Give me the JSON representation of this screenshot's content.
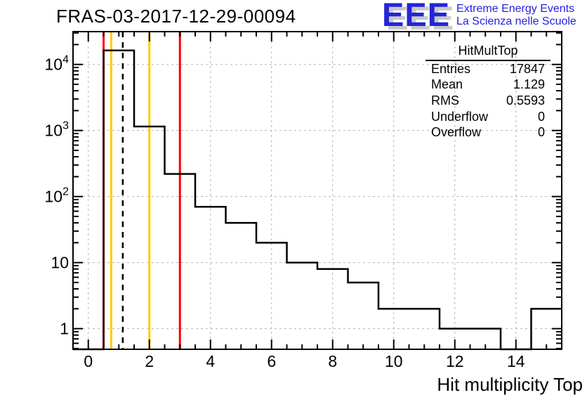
{
  "header": {
    "title": "FRAS-03-2017-12-29-00094"
  },
  "logo": {
    "eee": "EEE",
    "line1": "Extreme Energy Events",
    "line2": "La Scienza nelle Scuole",
    "color": "#2424d8",
    "shadow_color": "#c9c9c9"
  },
  "stats": {
    "title": "HitMultTop",
    "rows": [
      {
        "label": "Entries",
        "value": "17847"
      },
      {
        "label": "Mean",
        "value": "1.129"
      },
      {
        "label": "RMS",
        "value": "0.5593"
      },
      {
        "label": "Underflow",
        "value": "0"
      },
      {
        "label": "Overflow",
        "value": "0"
      }
    ]
  },
  "chart_data": {
    "type": "bar",
    "subtype": "step-histogram-outline",
    "title": "FRAS-03-2017-12-29-00094",
    "xlabel": "Hit multiplicity Top",
    "ylabel": "",
    "x_range": [
      -0.5,
      15.5
    ],
    "y_scale": "log",
    "y_range": [
      0.487,
      31400
    ],
    "bin_width": 1,
    "categories": [
      0,
      1,
      2,
      3,
      4,
      5,
      6,
      7,
      8,
      9,
      10,
      11,
      12,
      13,
      14,
      15
    ],
    "values": [
      0,
      16316,
      1150,
      220,
      70,
      40,
      20,
      10,
      8,
      5,
      2,
      2,
      1,
      1,
      0,
      2
    ],
    "x_major_ticks": [
      0,
      2,
      4,
      6,
      8,
      10,
      12,
      14
    ],
    "x_minor_step": 0.5,
    "y_ticks": [
      {
        "value": 1,
        "base": "1",
        "sup": ""
      },
      {
        "value": 10,
        "base": "10",
        "sup": ""
      },
      {
        "value": 100,
        "base": "10",
        "sup": "2"
      },
      {
        "value": 1000,
        "base": "10",
        "sup": "3"
      },
      {
        "value": 10000,
        "base": "10",
        "sup": "4"
      }
    ],
    "grid": {
      "show": true,
      "color": "#b4b4b4",
      "dash": "3 4"
    },
    "hist_color": "#000000",
    "frame_color": "#000000",
    "reference_lines": [
      {
        "x": 0.5,
        "color": "#ff0000",
        "style": "solid",
        "name": "red-line-low"
      },
      {
        "x": 0.75,
        "color": "#ffcc00",
        "style": "solid",
        "name": "yellow-line-low"
      },
      {
        "x": 1.129,
        "color": "#000000",
        "style": "dashed",
        "name": "mean-line"
      },
      {
        "x": 2,
        "color": "#ffcc00",
        "style": "solid",
        "name": "yellow-line-high"
      },
      {
        "x": 3,
        "color": "#ff0000",
        "style": "solid",
        "name": "red-line-high"
      }
    ],
    "legend_position": "none"
  }
}
